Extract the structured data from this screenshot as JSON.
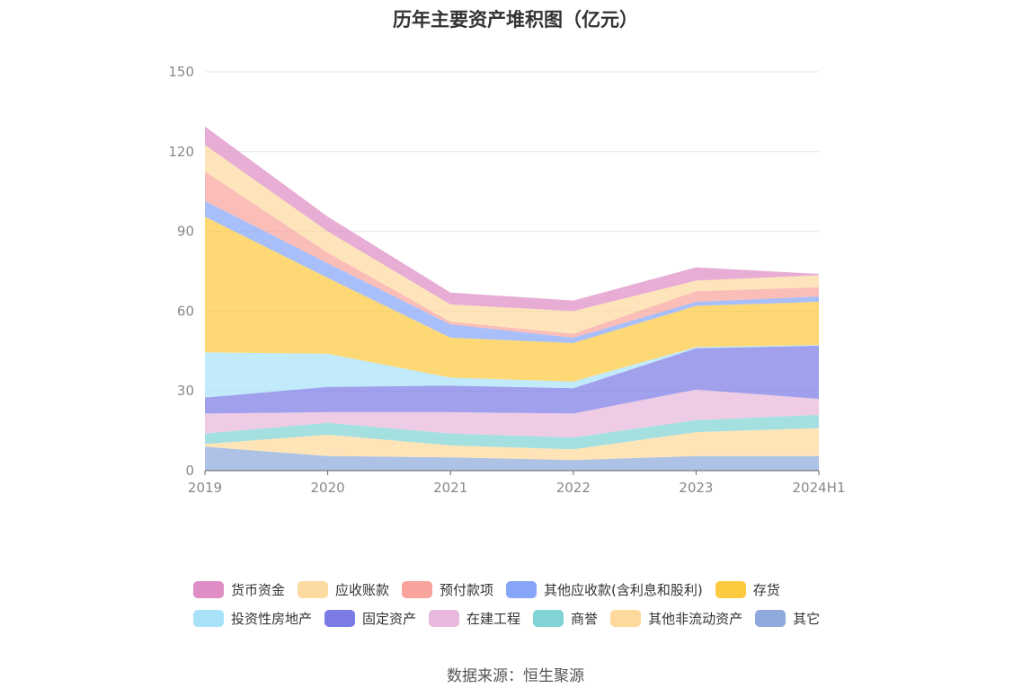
{
  "chart_data": {
    "type": "area",
    "stacked": true,
    "title": "历年主要资产堆积图（亿元）",
    "categories": [
      "2019",
      "2020",
      "2021",
      "2022",
      "2023",
      "2024H1"
    ],
    "ylim": [
      0,
      150
    ],
    "yticks": [
      "0",
      "30",
      "60",
      "90",
      "120",
      "150"
    ],
    "grid": true,
    "legend_position": "bottom",
    "series": [
      {
        "name": "其它",
        "color": "#8faadc",
        "values": [
          9,
          5.5,
          5,
          4,
          5.5,
          5.5
        ]
      },
      {
        "name": "其他非流动资产",
        "color": "#fdd99b",
        "values": [
          1,
          8,
          4.5,
          4,
          9,
          10.5
        ]
      },
      {
        "name": "商誉",
        "color": "#82d4d4",
        "values": [
          4,
          4.5,
          4.5,
          4.5,
          4.5,
          5
        ]
      },
      {
        "name": "在建工程",
        "color": "#e8b9dc",
        "values": [
          7.5,
          4,
          8,
          9,
          11.5,
          6
        ]
      },
      {
        "name": "固定资产",
        "color": "#7b7be6",
        "values": [
          6,
          9.5,
          10,
          9.5,
          15.5,
          20
        ]
      },
      {
        "name": "投资性房地产",
        "color": "#a9e2f8",
        "values": [
          17,
          12.5,
          3,
          2.5,
          0.5,
          0.3
        ]
      },
      {
        "name": "存货",
        "color": "#fcc93f",
        "values": [
          51,
          28.5,
          15,
          14.5,
          15.5,
          16.2
        ]
      },
      {
        "name": "其他应收款(含利息和股利)",
        "color": "#88a6f8",
        "values": [
          6,
          5.5,
          5,
          2,
          1.5,
          2
        ]
      },
      {
        "name": "预付款项",
        "color": "#f8a49c",
        "values": [
          11,
          4,
          1,
          1.5,
          4,
          3.5
        ]
      },
      {
        "name": "应收账款",
        "color": "#fddaa0",
        "values": [
          10,
          8,
          6.5,
          8.5,
          4,
          4.5
        ]
      },
      {
        "name": "货币资金",
        "color": "#de8ec4",
        "values": [
          7,
          5.5,
          4.5,
          4,
          5,
          0.5
        ]
      }
    ]
  },
  "legend_order": [
    [
      "货币资金",
      "应收账款",
      "预付款项",
      "其他应收款(含利息和股利)",
      "存货"
    ],
    [
      "投资性房地产",
      "固定资产",
      "在建工程",
      "商誉",
      "其他非流动资产",
      "其它"
    ]
  ],
  "footer": {
    "source": "数据来源：恒生聚源"
  }
}
